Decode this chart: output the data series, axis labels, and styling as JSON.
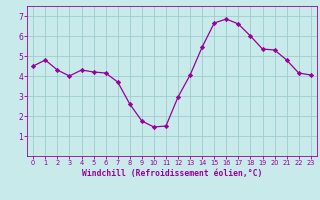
{
  "x": [
    0,
    1,
    2,
    3,
    4,
    5,
    6,
    7,
    8,
    9,
    10,
    11,
    12,
    13,
    14,
    15,
    16,
    17,
    18,
    19,
    20,
    21,
    22,
    23
  ],
  "y": [
    4.5,
    4.8,
    4.3,
    4.0,
    4.3,
    4.2,
    4.15,
    3.7,
    2.6,
    1.75,
    1.45,
    1.5,
    2.95,
    4.05,
    5.45,
    6.65,
    6.85,
    6.6,
    6.0,
    5.35,
    5.3,
    4.8,
    4.15,
    4.05
  ],
  "line_color": "#990099",
  "marker": "D",
  "marker_size": 2.2,
  "bg_color": "#c8eaea",
  "grid_color": "#9ecece",
  "xlabel": "Windchill (Refroidissement éolien,°C)",
  "xlabel_color": "#990099",
  "tick_color": "#990099",
  "spine_color": "#990099",
  "ylim": [
    0,
    7.5
  ],
  "xlim": [
    -0.5,
    23.5
  ],
  "yticks": [
    1,
    2,
    3,
    4,
    5,
    6,
    7
  ],
  "xticks": [
    0,
    1,
    2,
    3,
    4,
    5,
    6,
    7,
    8,
    9,
    10,
    11,
    12,
    13,
    14,
    15,
    16,
    17,
    18,
    19,
    20,
    21,
    22,
    23
  ],
  "xlabel_fontsize": 5.8,
  "xtick_fontsize": 4.8,
  "ytick_fontsize": 5.5
}
